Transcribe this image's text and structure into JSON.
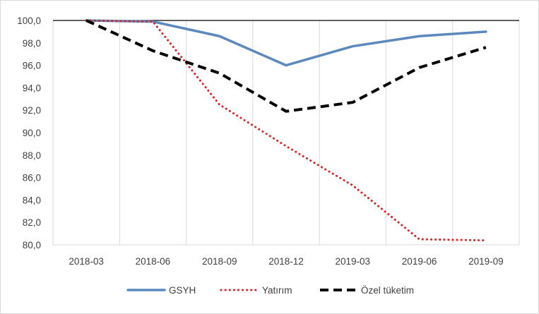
{
  "chart_data": {
    "type": "line",
    "title": "",
    "xlabel": "",
    "ylabel": "",
    "categories": [
      "2018-03",
      "2018-06",
      "2018-09",
      "2018-12",
      "2019-03",
      "2019-06",
      "2019-09"
    ],
    "ylim": [
      80,
      100
    ],
    "yticks": [
      80,
      82,
      84,
      86,
      88,
      90,
      92,
      94,
      96,
      98,
      100
    ],
    "ytick_labels": [
      "80,0",
      "82,0",
      "84,0",
      "86,0",
      "88,0",
      "90,0",
      "92,0",
      "94,0",
      "96,0",
      "98,0",
      "100,0"
    ],
    "grid": "vertical",
    "legend_position": "bottom",
    "series": [
      {
        "name": "GSYH",
        "values": [
          100.0,
          99.9,
          98.6,
          96.0,
          97.7,
          98.6,
          99.0
        ],
        "color": "#5b88bd",
        "style": "solid"
      },
      {
        "name": "Yatırım",
        "values": [
          100.0,
          99.9,
          92.5,
          88.8,
          85.3,
          80.5,
          80.4
        ],
        "color": "#e02020",
        "style": "dotted"
      },
      {
        "name": "Özel tüketim",
        "values": [
          100.0,
          97.3,
          95.3,
          91.9,
          92.7,
          95.8,
          97.6
        ],
        "color": "#000000",
        "style": "dashed"
      }
    ]
  }
}
